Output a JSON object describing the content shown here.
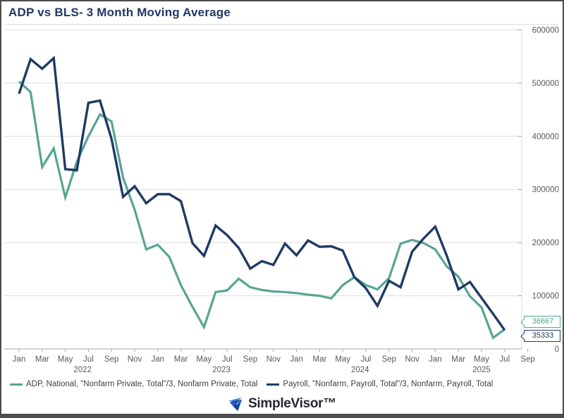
{
  "header": {
    "title": "ADP vs BLS- 3 Month Moving Average"
  },
  "footer": {
    "brand": "SimpleVisor™"
  },
  "chart_data": {
    "type": "line",
    "title": "ADP vs BLS- 3 Month Moving Average",
    "grid": "horizontal",
    "legend_position": "bottom",
    "y_axis_side": "right",
    "ylim": [
      0,
      600000
    ],
    "y_ticks": [
      0,
      100000,
      200000,
      300000,
      400000,
      500000,
      600000
    ],
    "y_tick_labels": [
      "0",
      "100000",
      "200000",
      "300000",
      "400000",
      "500000",
      "600000"
    ],
    "x": [
      "Jan 2022",
      "Feb 2022",
      "Mar 2022",
      "Apr 2022",
      "May 2022",
      "Jun 2022",
      "Jul 2022",
      "Aug 2022",
      "Sep 2022",
      "Oct 2022",
      "Nov 2022",
      "Dec 2022",
      "Jan 2023",
      "Feb 2023",
      "Mar 2023",
      "Apr 2023",
      "May 2023",
      "Jun 2023",
      "Jul 2023",
      "Aug 2023",
      "Sep 2023",
      "Oct 2023",
      "Nov 2023",
      "Dec 2023",
      "Jan 2024",
      "Feb 2024",
      "Mar 2024",
      "Apr 2024",
      "May 2024",
      "Jun 2024",
      "Jul 2024",
      "Aug 2024",
      "Sep 2024",
      "Oct 2024",
      "Nov 2024",
      "Dec 2024",
      "Jan 2025",
      "Feb 2025",
      "Mar 2025",
      "Apr 2025",
      "May 2025",
      "Jun 2025",
      "Jul 2025"
    ],
    "x_tick_labels": [
      {
        "m": 0,
        "label": "Jan"
      },
      {
        "m": 2,
        "label": "Mar"
      },
      {
        "m": 4,
        "label": "May"
      },
      {
        "m": 6,
        "label": "Jul"
      },
      {
        "m": 8,
        "label": "Sep"
      },
      {
        "m": 10,
        "label": "Nov"
      },
      {
        "m": 12,
        "label": "Jan"
      },
      {
        "m": 14,
        "label": "Mar"
      },
      {
        "m": 16,
        "label": "May"
      },
      {
        "m": 18,
        "label": "Jul"
      },
      {
        "m": 20,
        "label": "Sep"
      },
      {
        "m": 22,
        "label": "Nov"
      },
      {
        "m": 24,
        "label": "Jan"
      },
      {
        "m": 26,
        "label": "Mar"
      },
      {
        "m": 28,
        "label": "May"
      },
      {
        "m": 30,
        "label": "Jul"
      },
      {
        "m": 32,
        "label": "Sep"
      },
      {
        "m": 34,
        "label": "Nov"
      },
      {
        "m": 36,
        "label": "Jan"
      },
      {
        "m": 38,
        "label": "Mar"
      },
      {
        "m": 40,
        "label": "May"
      },
      {
        "m": 42,
        "label": "Jul"
      },
      {
        "m": 44,
        "label": "Sep"
      }
    ],
    "year_labels": [
      {
        "m": 5.5,
        "label": "2022"
      },
      {
        "m": 17.5,
        "label": "2023"
      },
      {
        "m": 29.5,
        "label": "2024"
      },
      {
        "m": 40,
        "label": "2025"
      }
    ],
    "series": [
      {
        "name": "ADP, National, \"Nonfarm Private, Total\"/3, Nonfarm Private, Total",
        "color": "#57a593",
        "end_label": "36667",
        "values": [
          503000,
          483000,
          342000,
          377000,
          285000,
          352000,
          400000,
          441000,
          428000,
          322000,
          262000,
          187000,
          196000,
          173000,
          120000,
          79000,
          41000,
          107000,
          110000,
          132000,
          116000,
          111000,
          108000,
          107000,
          105000,
          102000,
          100000,
          95000,
          120000,
          135000,
          120000,
          112000,
          133000,
          198000,
          205000,
          199000,
          187000,
          155000,
          136000,
          99000,
          78000,
          21000,
          36667
        ]
      },
      {
        "name": "Payroll, \"Nonfarm, Payroll, Total\"/3, Nonfarm, Payroll, Total",
        "color": "#1f3b63",
        "end_label": "35333",
        "values": [
          480000,
          545000,
          527000,
          547000,
          338000,
          336000,
          463000,
          467000,
          395000,
          286000,
          306000,
          274000,
          291000,
          291000,
          278000,
          199000,
          175000,
          232000,
          214000,
          190000,
          151000,
          165000,
          158000,
          198000,
          176000,
          204000,
          192000,
          193000,
          185000,
          135000,
          114000,
          81000,
          128000,
          116000,
          183000,
          208000,
          230000,
          175000,
          112000,
          126000,
          96000,
          66000,
          35333
        ]
      }
    ],
    "colors": {
      "grid": "#dcdcdc",
      "axis": "#a6a6a6",
      "axis_text": "#595959",
      "title_text": "#1f3864"
    }
  }
}
